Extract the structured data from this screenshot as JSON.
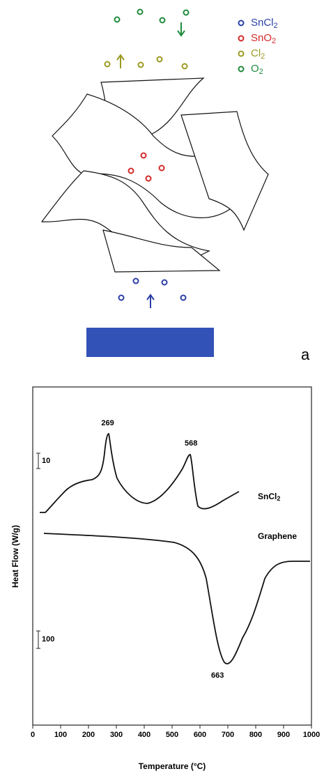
{
  "diagram": {
    "legend": [
      {
        "text": "SnCl",
        "sub": "2",
        "color": "#2b3fa6"
      },
      {
        "text": "SnO",
        "sub": "2",
        "color": "#d42a2a"
      },
      {
        "text": "Cl",
        "sub": "2",
        "color": "#9c9a22"
      },
      {
        "text": "O",
        "sub": "2",
        "color": "#1f8a3c"
      }
    ],
    "panel_label": "a"
  },
  "chart_data": {
    "type": "line",
    "xlabel": "Temperature (°C)",
    "ylabel": "Heat Flow (W/g)",
    "xlim": [
      0,
      1000
    ],
    "xticks": [
      0,
      100,
      200,
      300,
      400,
      500,
      600,
      700,
      800,
      900,
      1000
    ],
    "peaks": [
      269,
      568,
      663
    ],
    "curve_labels": [
      {
        "text": "SnCl",
        "sub": "2"
      },
      {
        "text": "Graphene"
      }
    ],
    "scale_bars": [
      "10",
      "100"
    ]
  }
}
